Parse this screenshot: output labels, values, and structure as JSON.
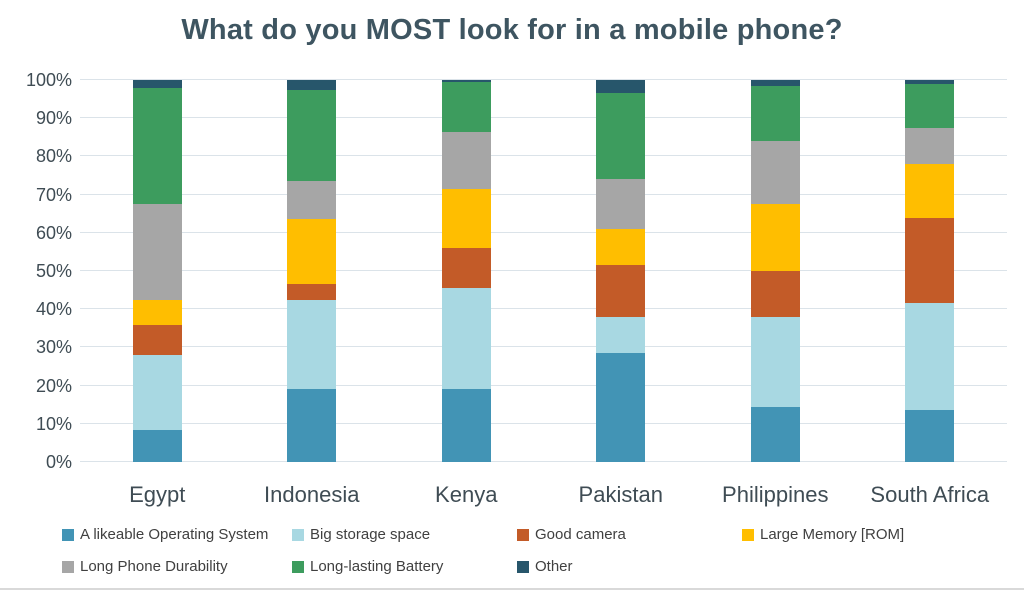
{
  "title": "What do you MOST look for in a mobile phone?",
  "chart_data": {
    "type": "bar",
    "stacked": true,
    "units": "percent",
    "title": "What do you MOST look for in a mobile phone?",
    "xlabel": "",
    "ylabel": "",
    "ylim": [
      0,
      100
    ],
    "grid": "horizontal",
    "legend_position": "bottom",
    "y_ticks": [
      "0%",
      "10%",
      "20%",
      "30%",
      "40%",
      "50%",
      "60%",
      "70%",
      "80%",
      "90%",
      "100%"
    ],
    "categories": [
      "Egypt",
      "Indonesia",
      "Kenya",
      "Pakistan",
      "Philippines",
      "South Africa"
    ],
    "series": [
      {
        "name": "A likeable Operating System",
        "color": "#4294B5",
        "values": [
          8.5,
          19,
          19,
          28.5,
          14.5,
          13.5
        ]
      },
      {
        "name": "Big storage space",
        "color": "#A8D8E2",
        "values": [
          19.5,
          23.5,
          26.5,
          9.5,
          23.5,
          28
        ]
      },
      {
        "name": "Good camera",
        "color": "#C35B28",
        "values": [
          8,
          4,
          10.5,
          13.5,
          12,
          22.5
        ]
      },
      {
        "name": "Large Memory [ROM]",
        "color": "#FFBE00",
        "values": [
          6.5,
          17,
          15.5,
          9.5,
          17.5,
          14
        ]
      },
      {
        "name": "Long Phone Durability",
        "color": "#A6A6A6",
        "values": [
          25,
          10,
          15,
          13,
          16.5,
          9.5
        ]
      },
      {
        "name": "Long-lasting Battery",
        "color": "#3D9C5E",
        "values": [
          30.5,
          24,
          13,
          22.5,
          14.5,
          11.5
        ]
      },
      {
        "name": "Other",
        "color": "#27566B",
        "values": [
          2,
          2.5,
          0.5,
          3.5,
          1.5,
          1
        ]
      }
    ]
  }
}
